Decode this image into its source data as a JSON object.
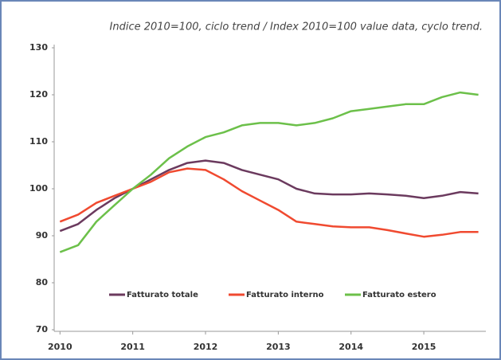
{
  "chart_data": {
    "type": "line",
    "title": "Indice 2010=100, ciclo trend / Index 2010=100 value data, cyclo trend.",
    "x": [
      2010,
      2010.25,
      2010.5,
      2010.75,
      2011,
      2011.25,
      2011.5,
      2011.75,
      2012,
      2012.25,
      2012.5,
      2012.75,
      2013,
      2013.25,
      2013.5,
      2013.75,
      2014,
      2014.25,
      2014.5,
      2014.75,
      2015,
      2015.25,
      2015.5,
      2015.75
    ],
    "series": [
      {
        "name": "Fatturato totale",
        "color": "#6b3a5e",
        "values": [
          91,
          92.5,
          95.5,
          98,
          100,
          102,
          104,
          105.5,
          106,
          105.5,
          104,
          103,
          102,
          100,
          99,
          98.8,
          98.8,
          99,
          98.8,
          98.5,
          98,
          98.5,
          99.3,
          99
        ]
      },
      {
        "name": "Fatturato interno",
        "color": "#f04a30",
        "values": [
          93,
          94.5,
          97,
          98.5,
          100,
          101.5,
          103.5,
          104.3,
          104,
          102,
          99.5,
          97.5,
          95.5,
          93,
          92.5,
          92,
          91.8,
          91.8,
          91.2,
          90.5,
          89.8,
          90.2,
          90.8,
          90.8
        ]
      },
      {
        "name": "Fatturato estero",
        "color": "#6cc04a",
        "values": [
          86.5,
          88,
          93,
          96.5,
          100,
          103,
          106.5,
          109,
          111,
          112,
          113.5,
          114,
          114,
          113.5,
          114,
          115,
          116.5,
          117,
          117.5,
          118,
          118,
          119.5,
          120.5,
          120
        ]
      }
    ],
    "xlim": [
      2009.92,
      2015.82
    ],
    "xticks": [
      2010,
      2011,
      2012,
      2013,
      2014,
      2015
    ],
    "ylim": [
      70,
      130
    ],
    "yticks": [
      70,
      80,
      90,
      100,
      110,
      120,
      130
    ],
    "grid": false,
    "legend": "bottom"
  }
}
